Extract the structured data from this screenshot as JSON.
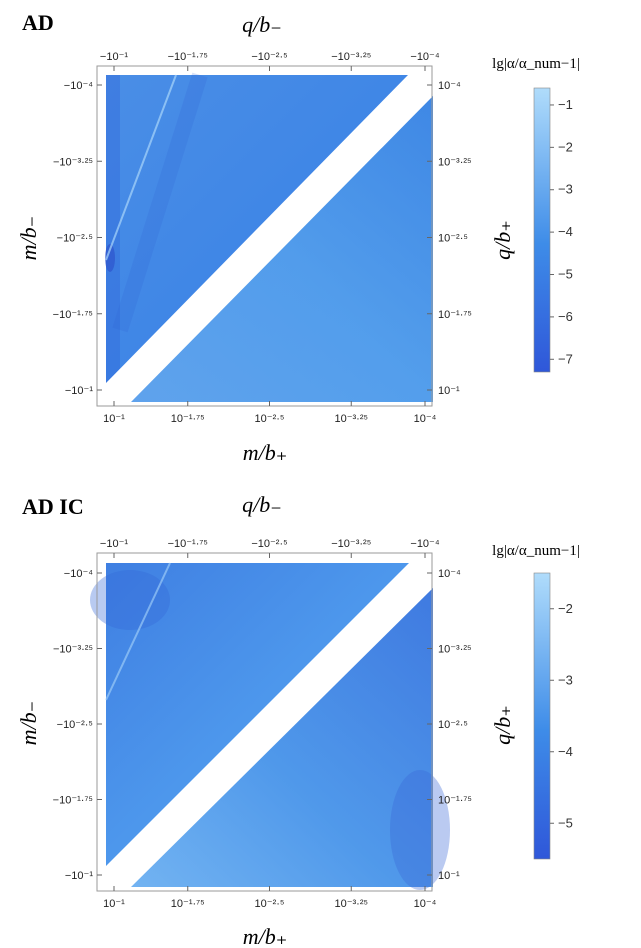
{
  "figure": {
    "scale_bg_colors": {
      "low": "#2f57d9",
      "high": "#b0dcfb",
      "frame": "#9a9a9a",
      "band": "#ffffff"
    }
  },
  "chart_data": [
    {
      "type": "heatmap",
      "title": "AD",
      "xlabel_bottom": "m/b₊",
      "xlabel_top": "q/b₋",
      "ylabel_left": "m/b₋",
      "ylabel_right": "q/b₊",
      "x_ticks_bottom": [
        "10⁻¹",
        "10⁻¹·⁷⁵",
        "10⁻²·⁵",
        "10⁻³·²⁵",
        "10⁻⁴"
      ],
      "x_ticks_top": [
        "−10⁻¹",
        "−10⁻¹·⁷⁵",
        "−10⁻²·⁵",
        "−10⁻³·²⁵",
        "−10⁻⁴"
      ],
      "y_ticks_left": [
        "−10⁻⁴",
        "−10⁻³·²⁵",
        "−10⁻²·⁵",
        "−10⁻¹·⁷⁵",
        "−10⁻¹"
      ],
      "y_ticks_right": [
        "10⁻⁴",
        "10⁻³·²⁵",
        "10⁻²·⁵",
        "10⁻¹·⁷⁵",
        "10⁻¹"
      ],
      "x_log10_range": [
        -1,
        -4
      ],
      "y_log10_range": [
        -4,
        -1
      ],
      "colorbar": {
        "label": "lg|α/α_num−1|",
        "range": [
          -7.3,
          -0.6
        ],
        "ticks": [
          -1,
          -2,
          -3,
          -4,
          -5,
          -6,
          -7
        ]
      }
    },
    {
      "type": "heatmap",
      "title": "AD IC",
      "xlabel_bottom": "m/b₊",
      "xlabel_top": "q/b₋",
      "ylabel_left": "m/b₋",
      "ylabel_right": "q/b₊",
      "x_ticks_bottom": [
        "10⁻¹",
        "10⁻¹·⁷⁵",
        "10⁻²·⁵",
        "10⁻³·²⁵",
        "10⁻⁴"
      ],
      "x_ticks_top": [
        "−10⁻¹",
        "−10⁻¹·⁷⁵",
        "−10⁻²·⁵",
        "−10⁻³·²⁵",
        "−10⁻⁴"
      ],
      "y_ticks_left": [
        "−10⁻⁴",
        "−10⁻³·²⁵",
        "−10⁻²·⁵",
        "−10⁻¹·⁷⁵",
        "−10⁻¹"
      ],
      "y_ticks_right": [
        "10⁻⁴",
        "10⁻³·²⁵",
        "10⁻²·⁵",
        "10⁻¹·⁷⁵",
        "10⁻¹"
      ],
      "x_log10_range": [
        -1,
        -4
      ],
      "y_log10_range": [
        -4,
        -1
      ],
      "colorbar": {
        "label": "lg|α/α_num−1|",
        "range": [
          -5.5,
          -1.5
        ],
        "ticks": [
          -2,
          -3,
          -4,
          -5
        ]
      }
    }
  ]
}
